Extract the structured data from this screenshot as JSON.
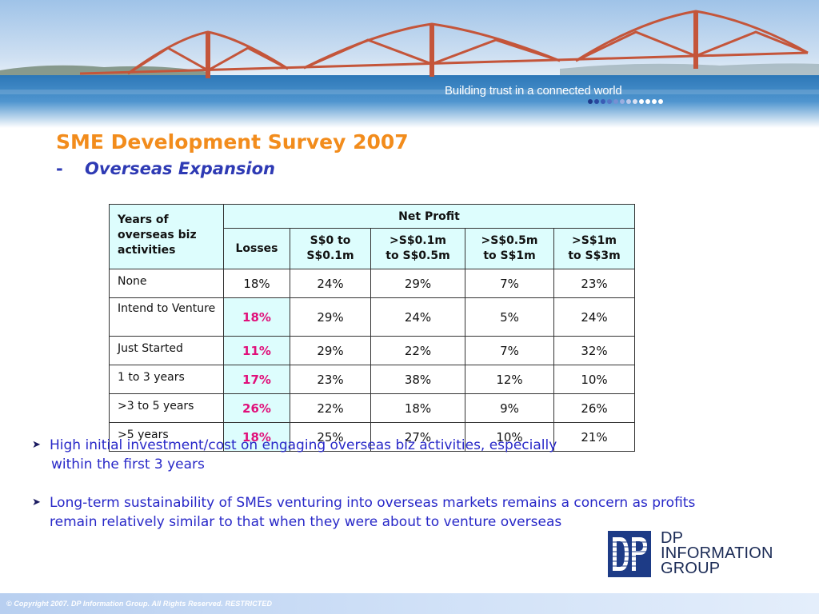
{
  "banner": {
    "tagline": "Building trust in a connected world",
    "dot_colors": [
      "#1f3a8a",
      "#2a49a0",
      "#3a5cb5",
      "#5574c5",
      "#7690d3",
      "#9aaee0",
      "#bcc9ea",
      "#d9e1f2",
      "#ffffff",
      "#ffffff",
      "#ffffff",
      "#ffffff"
    ]
  },
  "slide": {
    "title": "SME Development Survey 2007",
    "subtitle_dash": "-",
    "subtitle": "Overseas Expansion"
  },
  "table": {
    "row_header": "Years of overseas biz activities",
    "group_header": "Net Profit",
    "columns": [
      {
        "line1": "Losses",
        "line2": ""
      },
      {
        "line1": "S$0 to",
        "line2": "S$0.1m"
      },
      {
        "line1": ">S$0.1m",
        "line2": "to S$0.5m"
      },
      {
        "line1": ">S$0.5m",
        "line2": "to S$1m"
      },
      {
        "line1": ">S$1m",
        "line2": "to S$3m"
      }
    ],
    "rows": [
      {
        "label": "None",
        "values": [
          "18%",
          "24%",
          "29%",
          "7%",
          "23%"
        ]
      },
      {
        "label": "Intend to Venture",
        "values": [
          "18%",
          "29%",
          "24%",
          "5%",
          "24%"
        ]
      },
      {
        "label": "Just Started",
        "values": [
          "11%",
          "29%",
          "22%",
          "7%",
          "32%"
        ]
      },
      {
        "label": "1 to 3 years",
        "values": [
          "17%",
          "23%",
          "38%",
          "12%",
          "10%"
        ]
      },
      {
        "label": ">3 to 5 years",
        "values": [
          "26%",
          "22%",
          "18%",
          "9%",
          "26%"
        ]
      },
      {
        "label": ">5 years",
        "values": [
          "18%",
          "25%",
          "27%",
          "10%",
          "21%"
        ]
      }
    ],
    "highlight_color": "#e0107a",
    "header_bg": "#ddfdfd"
  },
  "bullets": [
    {
      "line1": "High initial investment/cost on engaging overseas biz activities, especially",
      "line2": "within the first 3 years"
    },
    {
      "line1": "Long-term sustainability of SMEs venturing into overseas markets remains a concern as profits",
      "line2": "remain relatively similar to that when they were about to venture overseas"
    }
  ],
  "logo": {
    "mark_text": "DP",
    "line1": "DP",
    "line2": "INFORMATION",
    "line3": "GROUP"
  },
  "footer": {
    "copyright": "© Copyright 2007. DP Information Group. All Rights Reserved. RESTRICTED"
  },
  "colors": {
    "title": "#f28c1c",
    "subtitle": "#2e3ab4",
    "bullet_text": "#2828c8",
    "bridge": "#c4553a"
  }
}
